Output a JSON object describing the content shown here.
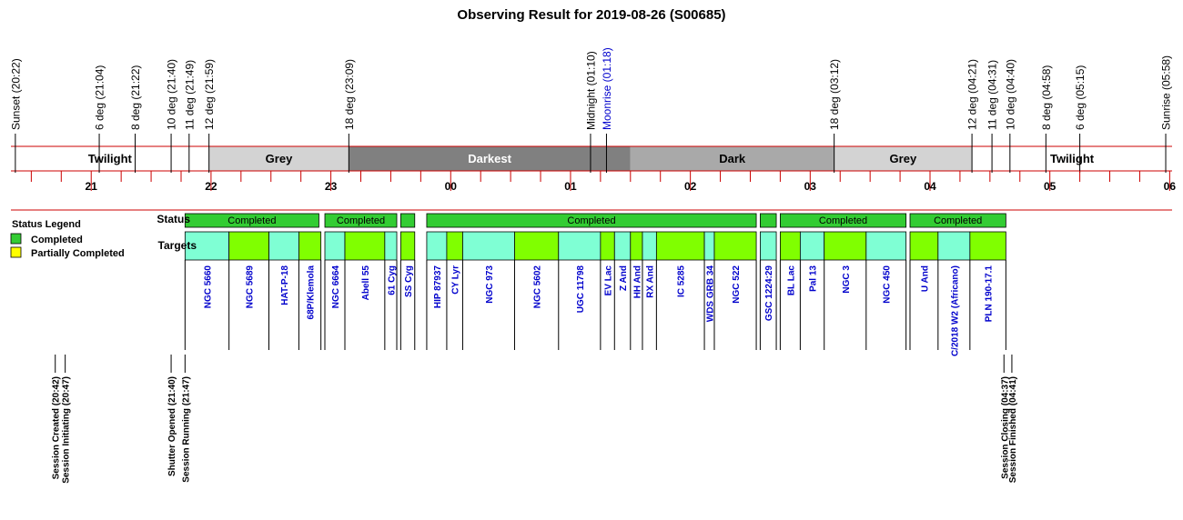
{
  "colors": {
    "red_line": "#cc0000",
    "twilight": "#ffffff",
    "grey": "#d3d3d3",
    "darkest": "#808080",
    "dark": "#a9a9a9",
    "completed": "#33cc33",
    "partially_completed": "#ffff00",
    "target_cyan": "#7fffd4",
    "target_green": "#80ff00",
    "blue_text": "#0000cc"
  },
  "chart_data": {
    "type": "timeline",
    "title": "Observing Result for 2019-08-26 (S00685)",
    "x_unit": "hour",
    "x_range": [
      20.33,
      30.02
    ],
    "hour_ticks": [
      {
        "value": 21,
        "label": "21"
      },
      {
        "value": 22,
        "label": "22"
      },
      {
        "value": 23,
        "label": "23"
      },
      {
        "value": 24,
        "label": "00"
      },
      {
        "value": 25,
        "label": "01"
      },
      {
        "value": 26,
        "label": "02"
      },
      {
        "value": 27,
        "label": "03"
      },
      {
        "value": 28,
        "label": "04"
      },
      {
        "value": 29,
        "label": "05"
      },
      {
        "value": 30,
        "label": "06"
      }
    ],
    "sky_events": [
      {
        "time": 20.367,
        "label": "Sunset (20:22)",
        "color": "black"
      },
      {
        "time": 21.067,
        "label": "6 deg (21:04)",
        "color": "black"
      },
      {
        "time": 21.367,
        "label": "8 deg (21:22)",
        "color": "black"
      },
      {
        "time": 21.667,
        "label": "10 deg (21:40)",
        "color": "black"
      },
      {
        "time": 21.817,
        "label": "11 deg (21:49)",
        "color": "black"
      },
      {
        "time": 21.983,
        "label": "12 deg (21:59)",
        "color": "black"
      },
      {
        "time": 23.15,
        "label": "18 deg (23:09)",
        "color": "black"
      },
      {
        "time": 25.167,
        "label": "Midnight (01:10)",
        "color": "black"
      },
      {
        "time": 25.3,
        "label": "Moonrise (01:18)",
        "color": "blue"
      },
      {
        "time": 27.2,
        "label": "18 deg (03:12)",
        "color": "black"
      },
      {
        "time": 28.35,
        "label": "12 deg (04:21)",
        "color": "black"
      },
      {
        "time": 28.517,
        "label": "11 deg (04:31)",
        "color": "black"
      },
      {
        "time": 28.667,
        "label": "10 deg (04:40)",
        "color": "black"
      },
      {
        "time": 28.967,
        "label": "8 deg (04:58)",
        "color": "black"
      },
      {
        "time": 29.25,
        "label": "6 deg (05:15)",
        "color": "black"
      },
      {
        "time": 29.967,
        "label": "Sunrise (05:58)",
        "color": "black"
      }
    ],
    "sky_bands": [
      {
        "start": 20.33,
        "end": 21.983,
        "label": "Twilight",
        "fill": "#ffffff"
      },
      {
        "start": 21.983,
        "end": 23.15,
        "label": "Grey",
        "fill": "#d3d3d3"
      },
      {
        "start": 23.15,
        "end": 25.5,
        "label": "Darkest",
        "fill": "#808080"
      },
      {
        "start": 25.5,
        "end": 27.2,
        "label": "Dark",
        "fill": "#a9a9a9"
      },
      {
        "start": 27.2,
        "end": 28.35,
        "label": "Grey",
        "fill": "#d3d3d3"
      },
      {
        "start": 28.35,
        "end": 30.02,
        "label": "Twilight",
        "fill": "#ffffff"
      }
    ],
    "row_labels": {
      "status": "Status",
      "targets": "Targets"
    },
    "status_segments": [
      {
        "start": 21.783,
        "end": 22.9,
        "status": "Completed",
        "label": "Completed"
      },
      {
        "start": 22.95,
        "end": 23.55,
        "status": "Completed",
        "label": "Completed"
      },
      {
        "start": 23.583,
        "end": 23.7,
        "status": "Completed",
        "label": ""
      },
      {
        "start": 23.8,
        "end": 26.55,
        "status": "Completed",
        "label": "Completed"
      },
      {
        "start": 26.583,
        "end": 26.717,
        "status": "Completed",
        "label": ""
      },
      {
        "start": 26.75,
        "end": 27.8,
        "status": "Completed",
        "label": "Completed"
      },
      {
        "start": 27.833,
        "end": 28.633,
        "status": "Completed",
        "label": "Completed"
      }
    ],
    "targets": [
      {
        "start": 21.783,
        "end": 22.15,
        "name": "NGC 5660",
        "fill": "#7fffd4"
      },
      {
        "start": 22.15,
        "end": 22.483,
        "name": "NGC 5689",
        "fill": "#80ff00"
      },
      {
        "start": 22.483,
        "end": 22.733,
        "name": "HAT-P-18",
        "fill": "#7fffd4"
      },
      {
        "start": 22.733,
        "end": 22.917,
        "name": "68P/Klemola",
        "fill": "#80ff00"
      },
      {
        "start": 22.95,
        "end": 23.117,
        "name": "NGC 6664",
        "fill": "#7fffd4"
      },
      {
        "start": 23.117,
        "end": 23.45,
        "name": "Abell 55",
        "fill": "#80ff00"
      },
      {
        "start": 23.45,
        "end": 23.55,
        "name": "61 Cyg",
        "fill": "#7fffd4"
      },
      {
        "start": 23.583,
        "end": 23.7,
        "name": "SS Cyg",
        "fill": "#80ff00"
      },
      {
        "start": 23.8,
        "end": 23.967,
        "name": "HIP 87937",
        "fill": "#7fffd4"
      },
      {
        "start": 23.967,
        "end": 24.1,
        "name": "CY Lyr",
        "fill": "#80ff00"
      },
      {
        "start": 24.1,
        "end": 24.533,
        "name": "NGC 973",
        "fill": "#7fffd4"
      },
      {
        "start": 24.533,
        "end": 24.9,
        "name": "NGC 5602",
        "fill": "#80ff00"
      },
      {
        "start": 24.9,
        "end": 25.25,
        "name": "UGC 11798",
        "fill": "#7fffd4"
      },
      {
        "start": 25.25,
        "end": 25.367,
        "name": "EV Lac",
        "fill": "#80ff00"
      },
      {
        "start": 25.367,
        "end": 25.5,
        "name": "Z And",
        "fill": "#7fffd4"
      },
      {
        "start": 25.5,
        "end": 25.6,
        "name": "HH And",
        "fill": "#80ff00"
      },
      {
        "start": 25.6,
        "end": 25.717,
        "name": "RX And",
        "fill": "#7fffd4"
      },
      {
        "start": 25.717,
        "end": 26.117,
        "name": "IC 5285",
        "fill": "#80ff00"
      },
      {
        "start": 26.117,
        "end": 26.2,
        "name": "WDS GRB 34",
        "fill": "#7fffd4"
      },
      {
        "start": 26.2,
        "end": 26.55,
        "name": "NGC 522",
        "fill": "#80ff00"
      },
      {
        "start": 26.583,
        "end": 26.717,
        "name": "GSC 1224:29",
        "fill": "#7fffd4"
      },
      {
        "start": 26.75,
        "end": 26.917,
        "name": "BL Lac",
        "fill": "#80ff00"
      },
      {
        "start": 26.917,
        "end": 27.117,
        "name": "Pal 13",
        "fill": "#7fffd4"
      },
      {
        "start": 27.117,
        "end": 27.467,
        "name": "NGC 3",
        "fill": "#80ff00"
      },
      {
        "start": 27.467,
        "end": 27.8,
        "name": "NGC 450",
        "fill": "#7fffd4"
      },
      {
        "start": 27.833,
        "end": 28.067,
        "name": "U And",
        "fill": "#80ff00"
      },
      {
        "start": 28.067,
        "end": 28.333,
        "name": "C/2018 W2 (Africano)",
        "fill": "#7fffd4"
      },
      {
        "start": 28.333,
        "end": 28.633,
        "name": "PLN 190-17.1",
        "fill": "#80ff00"
      }
    ],
    "session_events": [
      {
        "time": 20.7,
        "label": "Session Created (20:42)"
      },
      {
        "time": 20.783,
        "label": "Session Initiating (20:47)"
      },
      {
        "time": 21.667,
        "label": "Shutter Opened (21:40)"
      },
      {
        "time": 21.783,
        "label": "Session Running (21:47)"
      },
      {
        "time": 28.617,
        "label": "Session Closing (04:37)"
      },
      {
        "time": 28.683,
        "label": "Session Finished (04:41)"
      }
    ],
    "legend": {
      "title": "Status Legend",
      "placement": "left",
      "items": [
        {
          "label": "Completed",
          "color": "#33cc33"
        },
        {
          "label": "Partially Completed",
          "color": "#ffff00"
        }
      ]
    }
  }
}
